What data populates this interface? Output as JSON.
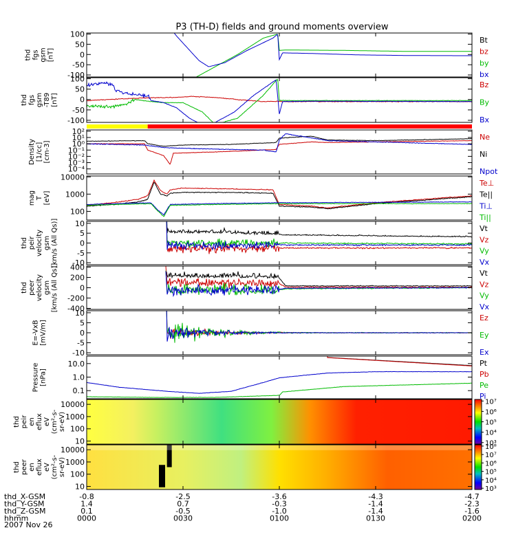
{
  "chart_data": {
    "type": "line",
    "title": "P3 (TH-D) fields and ground moments overview",
    "date": "2007 Nov 26",
    "time_axis": {
      "rows": [
        {
          "label": "thd_X-GSM",
          "values": [
            "-0.8",
            "-2.5",
            "-3.6",
            "-4.3",
            "-4.7"
          ]
        },
        {
          "label": "thd_Y-GSM",
          "values": [
            "1.4",
            "0.7",
            "-0.3",
            "-1.4",
            "-2.3"
          ]
        },
        {
          "label": "thd_Z-GSM",
          "values": [
            "0.1",
            "-0.5",
            "-1.0",
            "-1.4",
            "-1.6"
          ]
        },
        {
          "label": "hhmm",
          "values": [
            "0000",
            "0030",
            "0100",
            "0130",
            "0200"
          ]
        }
      ]
    },
    "panels": [
      {
        "id": "fgs",
        "kind": "line",
        "scale": "linear",
        "ylabel": [
          "thd",
          "fgs",
          "gsm",
          "[nT]"
        ],
        "yticks": [
          "100",
          "50",
          "0",
          "-50",
          "-100"
        ],
        "ytick_values": [
          100,
          50,
          0,
          -50,
          -100
        ],
        "ylim": [
          -110,
          105
        ],
        "series": [
          {
            "name": "Bt",
            "color": "#000000"
          },
          {
            "name": "bz",
            "color": "#cc0000"
          },
          {
            "name": "by",
            "color": "#00bb00"
          },
          {
            "name": "bx",
            "color": "#0000cc"
          }
        ]
      },
      {
        "id": "fgs_t89",
        "kind": "line",
        "scale": "linear",
        "ylabel": [
          "thd",
          "fgs",
          "gsm",
          "-T89",
          "[nT]"
        ],
        "yticks": [
          "100",
          "50",
          "0",
          "-50",
          "-100"
        ],
        "ytick_values": [
          100,
          50,
          0,
          -50,
          -100
        ],
        "ylim": [
          -110,
          105
        ],
        "series": [
          {
            "name": "Bz",
            "color": "#cc0000"
          },
          {
            "name": "By",
            "color": "#00bb00"
          },
          {
            "name": "Bx",
            "color": "#0000cc"
          }
        ]
      },
      {
        "id": "density",
        "kind": "line",
        "scale": "log",
        "ylabel": [
          "Density",
          "[1/cc]",
          "[cm-3]"
        ],
        "yticks": [
          "10²",
          "10¹",
          "10⁰",
          "10⁻¹",
          "10⁻²",
          "10⁻³",
          "10⁻⁴"
        ],
        "ytick_values": [
          2,
          1,
          0,
          -1,
          -2,
          -3,
          -4
        ],
        "ylim": [
          -4.8,
          2.2
        ],
        "series": [
          {
            "name": "Ne",
            "color": "#cc0000"
          },
          {
            "name": "Ni",
            "color": "#000000"
          },
          {
            "name": "Npot",
            "color": "#0000cc"
          }
        ]
      },
      {
        "id": "temperature",
        "kind": "line",
        "scale": "log",
        "ylabel": [
          "mag",
          "T",
          "[eV]"
        ],
        "yticks": [
          "10000",
          "1000",
          "100"
        ],
        "ytick_values": [
          4,
          3,
          2
        ],
        "ylim": [
          1.5,
          4.05
        ],
        "series": [
          {
            "name": "Te⊥",
            "color": "#cc0000"
          },
          {
            "name": "Te||",
            "color": "#000000"
          },
          {
            "name": "Ti⊥",
            "color": "#0000cc"
          },
          {
            "name": "Ti||",
            "color": "#00bb00"
          }
        ]
      },
      {
        "id": "peir_velocity",
        "kind": "line",
        "scale": "linear",
        "ylabel": [
          "thd",
          "peir",
          "velocity",
          "gsm",
          "[km/s (All Qs)]"
        ],
        "yticks": [
          "10",
          "5",
          "0",
          "-5",
          "-10"
        ],
        "ytick_values": [
          10,
          5,
          0,
          -5,
          -10
        ],
        "ylim": [
          -11,
          11
        ],
        "series": [
          {
            "name": "Vt",
            "color": "#000000"
          },
          {
            "name": "Vz",
            "color": "#cc0000"
          },
          {
            "name": "Vy",
            "color": "#00bb00"
          },
          {
            "name": "Vx",
            "color": "#0000cc"
          }
        ]
      },
      {
        "id": "peer_velocity",
        "kind": "line",
        "scale": "linear",
        "ylabel": [
          "thd",
          "peer",
          "velocity",
          "gsm",
          "[km/s (All Qs)]"
        ],
        "yticks": [
          "400",
          "200",
          "0",
          "-200",
          "-400"
        ],
        "ytick_values": [
          400,
          200,
          0,
          -200,
          -400
        ],
        "ylim": [
          -420,
          420
        ],
        "series": [
          {
            "name": "Vt",
            "color": "#000000"
          },
          {
            "name": "Vz",
            "color": "#cc0000"
          },
          {
            "name": "Vy",
            "color": "#00bb00"
          },
          {
            "name": "Vx",
            "color": "#0000cc"
          }
        ]
      },
      {
        "id": "efield",
        "kind": "line",
        "scale": "linear",
        "ylabel": [
          "E=-VxB",
          "[mV/m]"
        ],
        "yticks": [
          "10",
          "5",
          "0",
          "-5",
          "-10"
        ],
        "ytick_values": [
          10,
          5,
          0,
          -5,
          -10
        ],
        "ylim": [
          -11,
          11
        ],
        "series": [
          {
            "name": "Ez",
            "color": "#cc0000"
          },
          {
            "name": "Ey",
            "color": "#00bb00"
          },
          {
            "name": "Ex",
            "color": "#0000cc"
          }
        ]
      },
      {
        "id": "pressure",
        "kind": "line",
        "scale": "log",
        "ylabel": [
          "Pressure",
          "[nPa]"
        ],
        "yticks": [
          "10.0",
          "1.0",
          "0.1"
        ],
        "ytick_values": [
          1,
          0,
          -1
        ],
        "ylim": [
          -1.6,
          1.55
        ],
        "series": [
          {
            "name": "Pt",
            "color": "#000000"
          },
          {
            "name": "Pb",
            "color": "#cc0000"
          },
          {
            "name": "Pe",
            "color": "#00bb00"
          },
          {
            "name": "Pi",
            "color": "#0000cc"
          }
        ]
      },
      {
        "id": "peir_eflux",
        "kind": "spectrogram",
        "scale": "log",
        "ylabel": [
          "thd",
          "peir",
          "en",
          "eflux",
          "eV",
          "(cm²-s-",
          "sr-eV)"
        ],
        "yticks": [
          "10000",
          "1000",
          "100",
          "10"
        ],
        "ytick_values": [
          4,
          3,
          2,
          1
        ],
        "ylim": [
          0.75,
          4.4
        ],
        "colorbar_ticks": [
          "10⁷",
          "10⁶",
          "10⁵",
          "10⁴",
          "10³"
        ],
        "colorbar_values": [
          7,
          6,
          5,
          4,
          3
        ]
      },
      {
        "id": "peer_eflux",
        "kind": "spectrogram",
        "scale": "log",
        "ylabel": [
          "thd",
          "peer",
          "en",
          "eflux",
          "eV",
          "(cm²-s-",
          "sr-eV)"
        ],
        "yticks": [
          "10000",
          "1000",
          "100",
          "10"
        ],
        "ytick_values": [
          4,
          3,
          2,
          1
        ],
        "ylim": [
          0.75,
          4.4
        ],
        "colorbar_ticks": [
          "10⁸",
          "10⁷",
          "10⁶",
          "10⁵",
          "10⁴",
          "10³"
        ],
        "colorbar_values": [
          8,
          7,
          6,
          5,
          4,
          3
        ]
      }
    ]
  }
}
